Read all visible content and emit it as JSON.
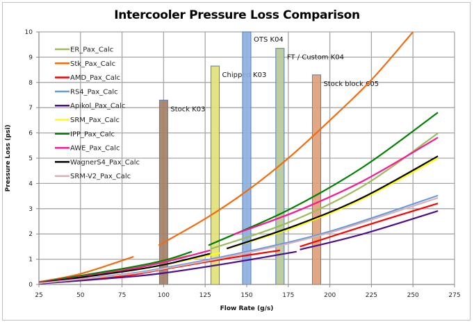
{
  "chart_data": {
    "type": "line",
    "title": "Intercooler Pressure Loss Comparison",
    "xlabel": "Flow Rate (g/s)",
    "ylabel": "Pressure Loss (psi)",
    "xlim": [
      25,
      275
    ],
    "ylim": [
      0,
      10
    ],
    "xticks": [
      25,
      50,
      75,
      100,
      125,
      150,
      175,
      200,
      225,
      250,
      275
    ],
    "yticks": [
      0,
      1,
      2,
      3,
      4,
      5,
      6,
      7,
      8,
      9,
      10
    ],
    "grid": true,
    "legend": "top-left",
    "bars": [
      {
        "label": "Stock K03",
        "x": 100,
        "value": 7.3,
        "color": "#a57f66"
      },
      {
        "label": "Chipped K03",
        "x": 131,
        "value": 8.65,
        "color": "#e3e27a"
      },
      {
        "label": "OTS K04",
        "x": 150,
        "value": 10.0,
        "color": "#8fb0e0"
      },
      {
        "label": "FT / Custom K04",
        "x": 170,
        "value": 9.35,
        "color": "#b9c896"
      },
      {
        "label": "Stock block 605",
        "x": 192,
        "value": 8.3,
        "color": "#e0a07a"
      }
    ],
    "series": [
      {
        "name": "ER_Pax_Calc",
        "color": "#9bbb59",
        "segments": [
          [
            [
              25,
              0.08
            ],
            [
              75,
              0.6
            ],
            [
              116,
              1.15
            ]
          ],
          [
            [
              128,
              1.4
            ],
            [
              175,
              2.45
            ],
            [
              220,
              3.9
            ],
            [
              265,
              5.99
            ]
          ]
        ]
      },
      {
        "name": "Stk_Pax_Calc",
        "color": "#f26c0f",
        "segments": [
          [
            [
              25,
              0.1
            ],
            [
              50,
              0.42
            ],
            [
              82,
              1.1
            ]
          ],
          [
            [
              97,
              1.55
            ],
            [
              125,
              2.6
            ],
            [
              150,
              3.7
            ],
            [
              175,
              5.0
            ],
            [
              200,
              6.5
            ],
            [
              225,
              8.1
            ],
            [
              250,
              10.0
            ]
          ]
        ]
      },
      {
        "name": "AMD_Pax_Calc",
        "color": "#ff0000",
        "segments": [
          [
            [
              25,
              0.05
            ],
            [
              75,
              0.33
            ],
            [
              100,
              0.6
            ],
            [
              140,
              1.05
            ],
            [
              170,
              1.35
            ]
          ],
          [
            [
              182,
              1.5
            ],
            [
              220,
              2.3
            ],
            [
              265,
              3.21
            ]
          ]
        ]
      },
      {
        "name": "RS4_Pax_Calc",
        "color": "#6699dd",
        "segments": [
          [
            [
              25,
              0.05
            ],
            [
              75,
              0.4
            ],
            [
              100,
              0.65
            ],
            [
              150,
              1.3
            ],
            [
              200,
              2.1
            ],
            [
              265,
              3.52
            ]
          ]
        ]
      },
      {
        "name": "Apikol_Pax_Calc",
        "color": "#4b0e8c",
        "segments": [
          [
            [
              25,
              0.03
            ],
            [
              75,
              0.28
            ],
            [
              100,
              0.45
            ],
            [
              140,
              0.85
            ],
            [
              180,
              1.3
            ]
          ],
          [
            [
              182,
              1.38
            ],
            [
              220,
              2.0
            ],
            [
              265,
              2.91
            ]
          ]
        ]
      },
      {
        "name": "SRM_Pax_Calc",
        "color": "#ffff00",
        "segments": [
          [
            [
              25,
              0.06
            ],
            [
              75,
              0.5
            ],
            [
              100,
              0.78
            ],
            [
              134,
              1.25
            ]
          ],
          [
            [
              138,
              1.42
            ],
            [
              180,
              2.3
            ],
            [
              220,
              3.4
            ],
            [
              265,
              5.0
            ]
          ]
        ]
      },
      {
        "name": "IPP_Pax_Calc",
        "color": "#008000",
        "segments": [
          [
            [
              25,
              0.08
            ],
            [
              75,
              0.62
            ],
            [
              100,
              0.95
            ],
            [
              117,
              1.3
            ]
          ],
          [
            [
              127,
              1.55
            ],
            [
              175,
              2.95
            ],
            [
              220,
              4.65
            ],
            [
              265,
              6.81
            ]
          ]
        ]
      },
      {
        "name": "AWE_Pax_Calc",
        "color": "#ff1493",
        "segments": [
          [
            [
              25,
              0.07
            ],
            [
              75,
              0.55
            ],
            [
              100,
              0.88
            ],
            [
              128,
              1.35
            ]
          ],
          [
            [
              142,
              1.98
            ],
            [
              180,
              2.9
            ],
            [
              220,
              4.1
            ],
            [
              265,
              5.82
            ]
          ]
        ]
      },
      {
        "name": "WagnerS4_Pax_Calc",
        "color": "#000000",
        "segments": [
          [
            [
              25,
              0.06
            ],
            [
              75,
              0.5
            ],
            [
              100,
              0.78
            ],
            [
              128,
              1.22
            ]
          ],
          [
            [
              138,
              1.42
            ],
            [
              180,
              2.35
            ],
            [
              220,
              3.45
            ],
            [
              265,
              5.08
            ]
          ]
        ]
      },
      {
        "name": "SRM-V2_Pax_Calc",
        "color": "#d9b3b3",
        "segments": [
          [
            [
              25,
              0.05
            ],
            [
              75,
              0.38
            ],
            [
              100,
              0.62
            ],
            [
              150,
              1.25
            ],
            [
              200,
              2.05
            ],
            [
              265,
              3.43
            ]
          ]
        ]
      }
    ]
  }
}
